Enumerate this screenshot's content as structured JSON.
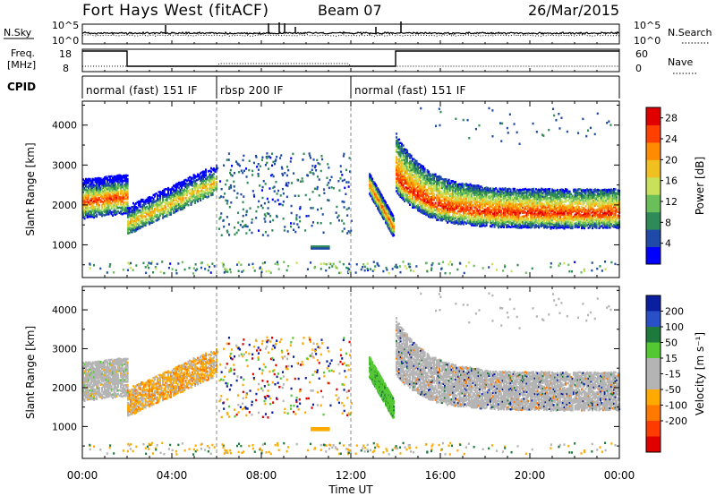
{
  "header": {
    "station": "Fort Hays West (fitACF)",
    "beam": "Beam 07",
    "date": "26/Mar/2015"
  },
  "side_labels": {
    "nsky": "N.Sky",
    "freq_line1": "Freq.",
    "freq_line2": "[MHz]",
    "cpid": "CPID",
    "nsearch": "N.Search",
    "nave": "Nave"
  },
  "noise_panel": {
    "left_ticks": [
      "10^5",
      "10^0"
    ],
    "right_ticks": [
      "10^5",
      "10^0"
    ]
  },
  "freq_panel": {
    "left_ticks": [
      "18",
      "8"
    ],
    "right_ticks": [
      "60",
      "0"
    ]
  },
  "cpid_segments": [
    {
      "label": "normal (fast) 151 IF",
      "start_h": 0.0,
      "end_h": 6.0
    },
    {
      "label": "rbsp 200 IF",
      "start_h": 6.0,
      "end_h": 12.0
    },
    {
      "label": "normal (fast) 151 IF",
      "start_h": 12.0,
      "end_h": 24.0
    }
  ],
  "colors": {
    "power_scale": [
      "#0000ff",
      "#1f4aa8",
      "#2e8b57",
      "#6bbf59",
      "#c8e05a",
      "#f0c020",
      "#ff8c00",
      "#ff4000",
      "#e00000"
    ],
    "velocity_scale": [
      "#0a1ea0",
      "#2a50c8",
      "#1e7a3c",
      "#54c832",
      "#b4b4b4",
      "#b4b4b4",
      "#ffaa00",
      "#ff7800",
      "#ff3c00",
      "#e00000"
    ]
  },
  "chart_data": [
    {
      "type": "heatmap",
      "panel": "power",
      "xlabel": "Time UT",
      "ylabel": "Slant Range [km]",
      "x_ticks": [
        "00:00",
        "04:00",
        "08:00",
        "12:00",
        "16:00",
        "20:00",
        "00:00"
      ],
      "xlim_hours": [
        0,
        24
      ],
      "ylim_km": [
        180,
        4600
      ],
      "y_ticks": [
        1000,
        2000,
        3000,
        4000
      ],
      "colorbar_label": "Power [dB]",
      "colorbar_ticks": [
        4,
        8,
        12,
        16,
        20,
        24,
        28
      ],
      "colorbar_range": [
        0,
        30
      ]
    },
    {
      "type": "heatmap",
      "panel": "velocity",
      "xlabel": "Time UT",
      "ylabel": "Slant Range [km]",
      "x_ticks": [
        "00:00",
        "04:00",
        "08:00",
        "12:00",
        "16:00",
        "20:00",
        "00:00"
      ],
      "xlim_hours": [
        0,
        24
      ],
      "ylim_km": [
        180,
        4600
      ],
      "y_ticks": [
        1000,
        2000,
        3000,
        4000
      ],
      "colorbar_label": "Velocity [m s⁻¹]",
      "colorbar_ticks": [
        "200",
        "100",
        "50",
        "15",
        "-15",
        "-50",
        "-100",
        "-200"
      ]
    }
  ]
}
